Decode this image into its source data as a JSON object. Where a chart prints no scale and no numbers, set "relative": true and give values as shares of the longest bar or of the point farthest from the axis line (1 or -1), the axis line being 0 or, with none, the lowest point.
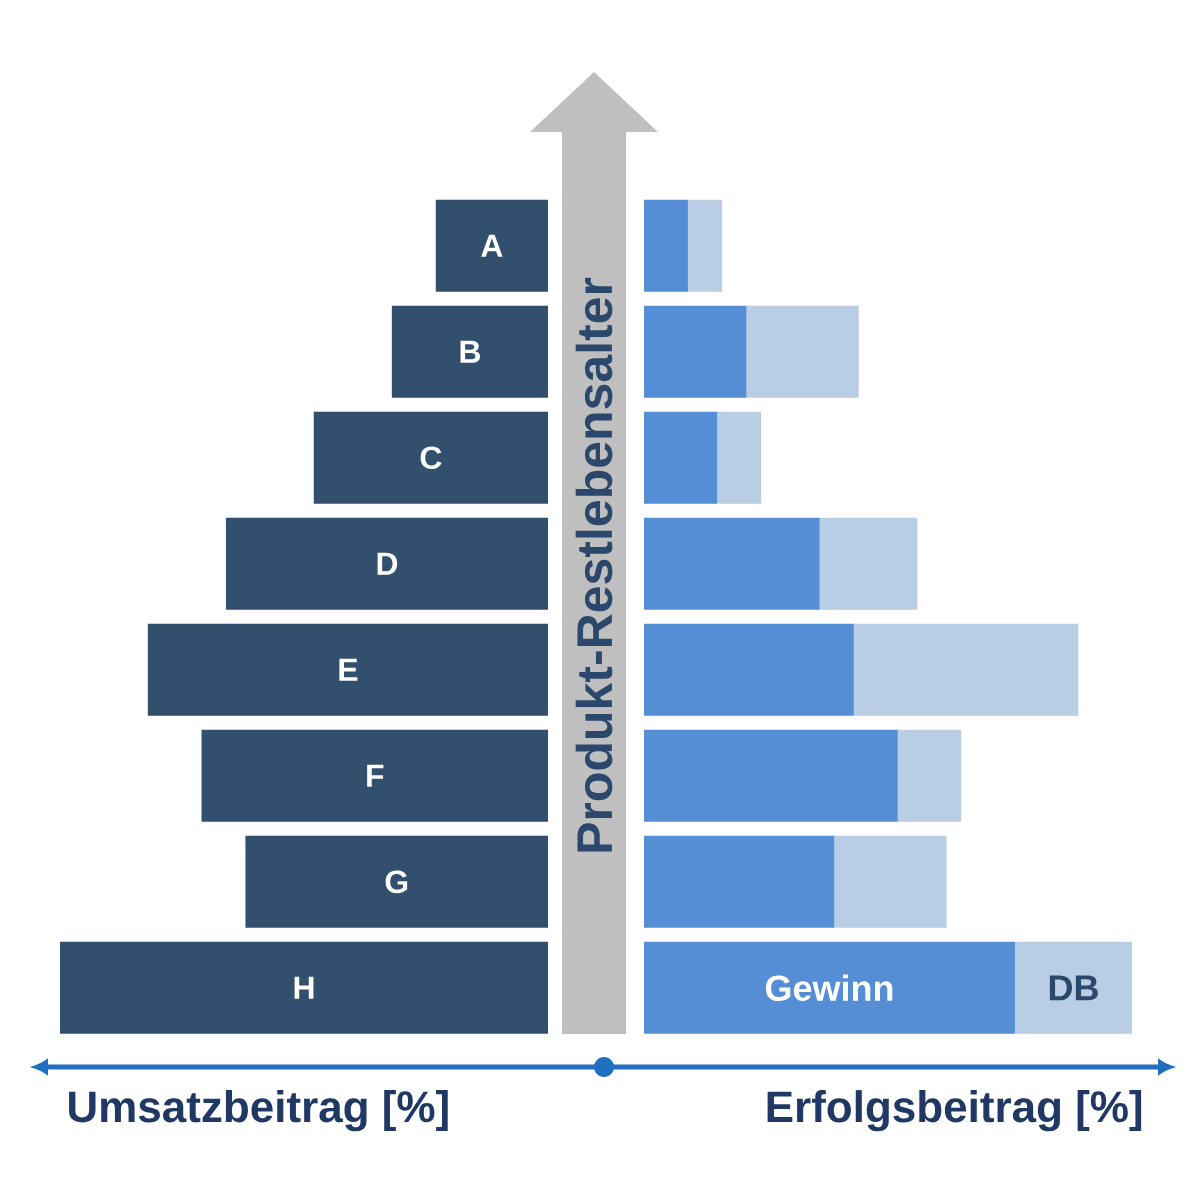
{
  "chart_data": [
    {
      "type": "bar",
      "orientation": "horizontal",
      "relative": true,
      "categories": [
        "A",
        "B",
        "C",
        "D",
        "E",
        "F",
        "G",
        "H"
      ],
      "values": [
        0.23,
        0.32,
        0.48,
        0.66,
        0.82,
        0.71,
        0.62,
        1
      ],
      "color": "#334f6e",
      "xlabel": "Umsatzbeitrag [%]",
      "ylabel": "Produkt-Restlebensalter"
    },
    {
      "type": "bar",
      "orientation": "horizontal",
      "stacked": true,
      "relative": true,
      "categories": [
        null,
        null,
        null,
        null,
        null,
        null,
        null,
        null
      ],
      "series": [
        {
          "name": "Gewinn",
          "color": "#558ed5",
          "values": [
            0.09,
            0.21,
            0.15,
            0.36,
            0.43,
            0.52,
            0.39,
            0.76
          ]
        },
        {
          "name": "DB",
          "color": "#b9cde5",
          "values": [
            0.07,
            0.23,
            0.09,
            0.2,
            0.46,
            0.13,
            0.23,
            0.24
          ]
        }
      ],
      "xlabel": "Erfolgsbeitrag [%]"
    }
  ]
}
